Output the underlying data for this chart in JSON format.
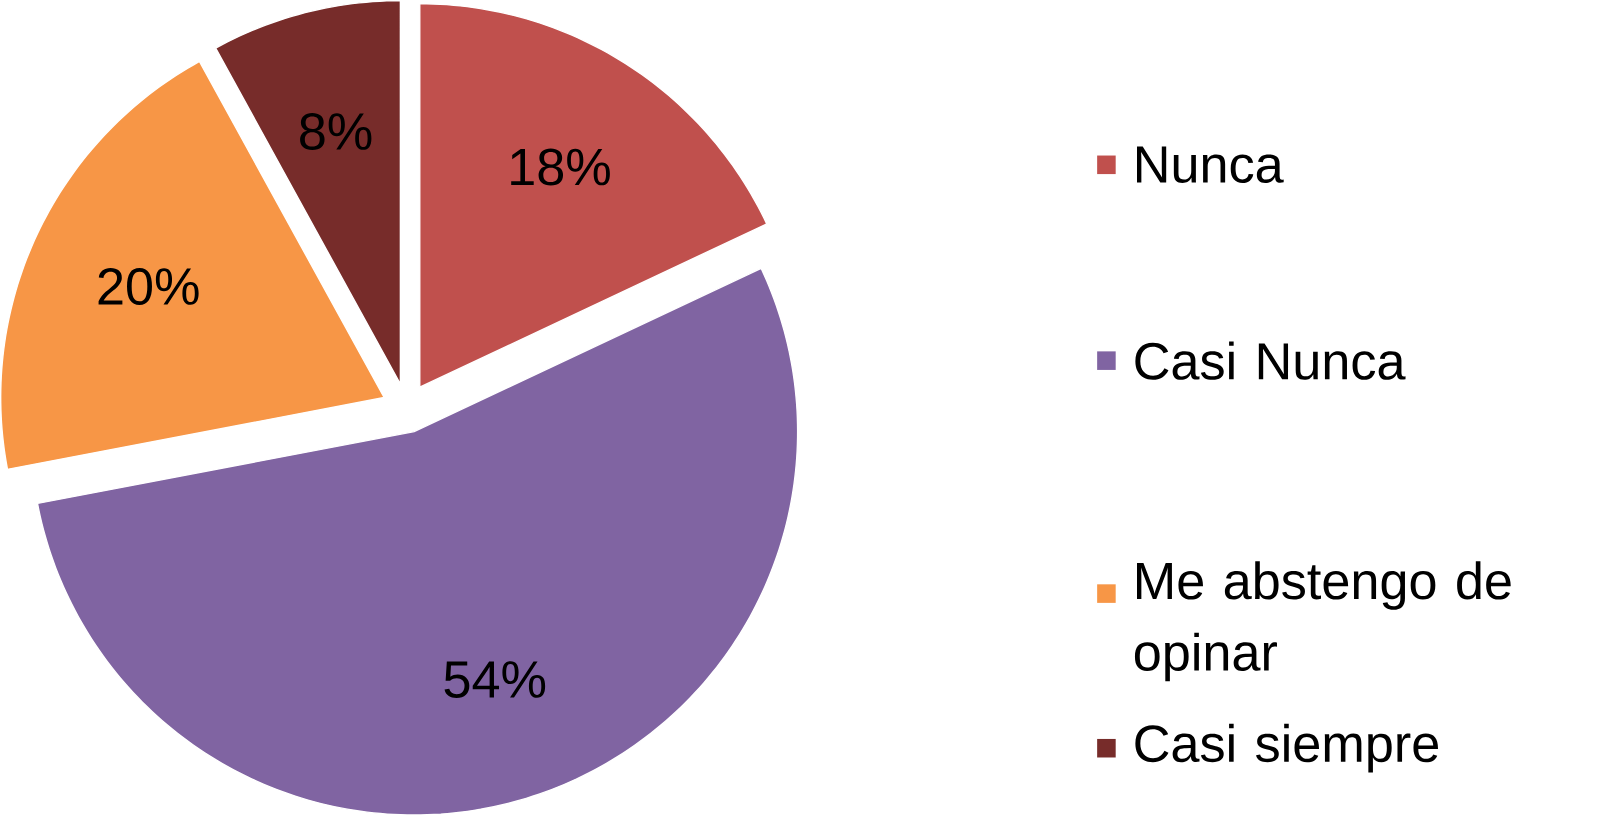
{
  "chart_data": {
    "type": "pie",
    "categories": [
      "Nunca",
      "Casi Nunca",
      "Me abstengo de opinar",
      "Casi siempre"
    ],
    "values": [
      18,
      54,
      20,
      8
    ],
    "colors": [
      "#c0504d",
      "#8064a2",
      "#f79646",
      "#772c2a"
    ],
    "value_labels": [
      "18%",
      "54%",
      "20%",
      "8%"
    ],
    "legend": "right"
  }
}
